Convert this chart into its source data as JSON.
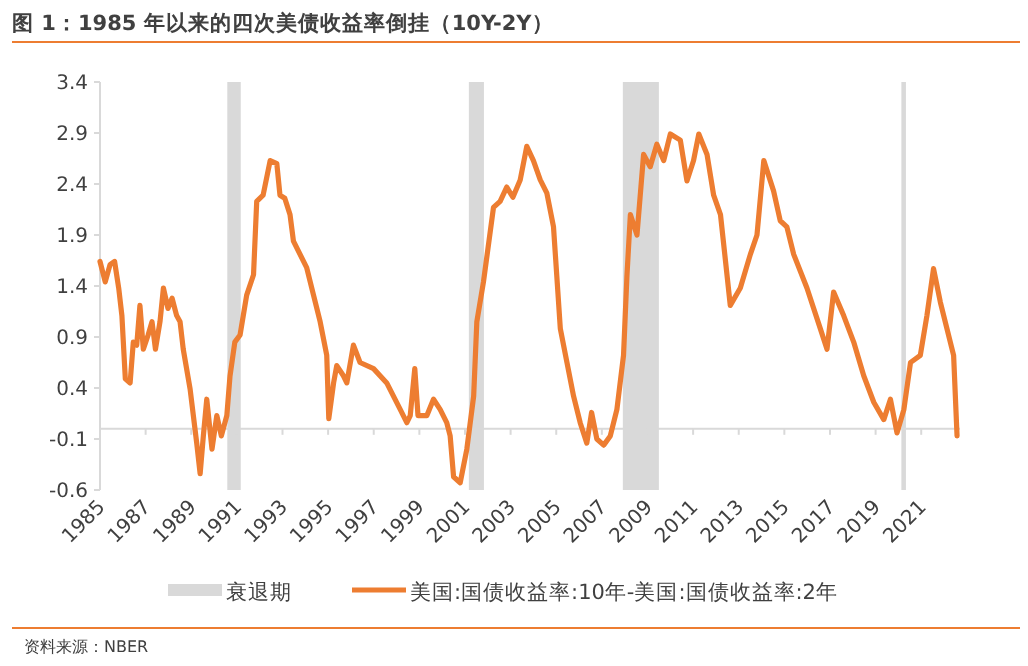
{
  "chart_data": {
    "type": "line",
    "title": "图 1：1985 年以来的四次美债收益率倒挂（10Y-2Y）",
    "annotations": [
      "资料来源：NBER"
    ],
    "xlim": [
      1985,
      2022.7
    ],
    "ylim": [
      -0.6,
      3.4
    ],
    "xticks": [
      1985,
      1987,
      1989,
      1991,
      1993,
      1995,
      1997,
      1999,
      2001,
      2003,
      2005,
      2007,
      2009,
      2011,
      2013,
      2015,
      2017,
      2019,
      2021
    ],
    "yticks": [
      -0.6,
      -0.1,
      0.4,
      0.9,
      1.4,
      1.9,
      2.4,
      2.9,
      3.4
    ],
    "grid": false,
    "legend": "bottom",
    "marker": "none",
    "line_style": "solid",
    "bands": [
      {
        "axis": "x",
        "from": 1990.58,
        "to": 1991.17,
        "label": "衰退期",
        "color": "#d9d9d9"
      },
      {
        "axis": "x",
        "from": 2001.17,
        "to": 2001.83,
        "color": "#d9d9d9"
      },
      {
        "axis": "x",
        "from": 2007.92,
        "to": 2009.5,
        "color": "#d9d9d9"
      },
      {
        "axis": "x",
        "from": 2020.13,
        "to": 2020.33,
        "color": "#d9d9d9"
      }
    ],
    "series": [
      {
        "name": "美国:国债收益率:10年-美国:国债收益率:2年",
        "color": "#ed7d31",
        "x": [
          1985.0,
          1985.23,
          1985.44,
          1985.64,
          1985.82,
          1985.96,
          1986.11,
          1986.32,
          1986.46,
          1986.61,
          1986.75,
          1986.9,
          1987.11,
          1987.28,
          1987.43,
          1987.63,
          1987.78,
          1987.98,
          1988.16,
          1988.36,
          1988.51,
          1988.65,
          1988.95,
          1989.24,
          1989.39,
          1989.53,
          1989.68,
          1989.91,
          1990.12,
          1990.32,
          1990.56,
          1990.7,
          1990.91,
          1991.14,
          1991.43,
          1991.73,
          1991.87,
          1992.15,
          1992.46,
          1992.75,
          1992.89,
          1993.1,
          1993.33,
          1993.48,
          1994.06,
          1994.36,
          1994.65,
          1994.94,
          1995.03,
          1995.24,
          1995.38,
          1995.67,
          1995.82,
          1996.11,
          1996.4,
          1996.99,
          1997.57,
          1998.16,
          1998.45,
          1998.6,
          1998.8,
          1998.94,
          1999.33,
          1999.62,
          1999.91,
          2000.2,
          2000.35,
          2000.5,
          2000.79,
          2001.08,
          2001.38,
          2001.52,
          2001.81,
          2002.25,
          2002.54,
          2002.83,
          2003.1,
          2003.42,
          2003.71,
          2004.0,
          2004.3,
          2004.59,
          2004.88,
          2005.18,
          2005.47,
          2005.76,
          2006.05,
          2006.34,
          2006.55,
          2006.78,
          2007.08,
          2007.37,
          2007.66,
          2007.95,
          2008.1,
          2008.25,
          2008.54,
          2008.83,
          2009.12,
          2009.41,
          2009.71,
          2010.0,
          2010.44,
          2010.73,
          2011.02,
          2011.25,
          2011.61,
          2011.9,
          2012.2,
          2012.63,
          2013.07,
          2013.51,
          2013.8,
          2014.1,
          2014.53,
          2014.82,
          2015.11,
          2015.41,
          2015.99,
          2016.58,
          2016.87,
          2017.16,
          2017.6,
          2018.04,
          2018.48,
          2018.92,
          2019.36,
          2019.65,
          2019.94,
          2020.24,
          2020.53,
          2020.96,
          2021.25,
          2021.54,
          2021.84,
          2022.13,
          2022.42,
          2022.57
        ],
        "values": [
          1.64,
          1.44,
          1.61,
          1.64,
          1.38,
          1.11,
          0.49,
          0.45,
          0.85,
          0.82,
          1.21,
          0.78,
          0.92,
          1.05,
          0.78,
          1.05,
          1.38,
          1.18,
          1.28,
          1.11,
          1.05,
          0.78,
          0.39,
          -0.14,
          -0.44,
          -0.07,
          0.29,
          -0.2,
          0.13,
          -0.07,
          0.13,
          0.52,
          0.85,
          0.92,
          1.31,
          1.51,
          2.23,
          2.29,
          2.63,
          2.6,
          2.29,
          2.26,
          2.1,
          1.84,
          1.58,
          1.31,
          1.05,
          0.72,
          0.1,
          0.45,
          0.62,
          0.52,
          0.45,
          0.82,
          0.65,
          0.59,
          0.45,
          0.19,
          0.06,
          0.13,
          0.59,
          0.13,
          0.13,
          0.29,
          0.19,
          0.06,
          -0.07,
          -0.47,
          -0.53,
          -0.2,
          0.32,
          1.05,
          1.44,
          2.17,
          2.23,
          2.37,
          2.27,
          2.44,
          2.77,
          2.63,
          2.44,
          2.31,
          1.98,
          0.98,
          0.65,
          0.32,
          0.06,
          -0.14,
          0.16,
          -0.1,
          -0.16,
          -0.07,
          0.19,
          0.72,
          1.5,
          2.1,
          1.9,
          2.69,
          2.57,
          2.79,
          2.63,
          2.89,
          2.83,
          2.43,
          2.63,
          2.89,
          2.69,
          2.29,
          2.1,
          1.21,
          1.38,
          1.71,
          1.9,
          2.63,
          2.33,
          2.04,
          1.98,
          1.71,
          1.38,
          0.98,
          0.78,
          1.34,
          1.11,
          0.85,
          0.52,
          0.26,
          0.09,
          0.29,
          -0.04,
          0.19,
          0.65,
          0.72,
          1.11,
          1.57,
          1.24,
          0.98,
          0.72,
          -0.07
        ]
      }
    ]
  }
}
